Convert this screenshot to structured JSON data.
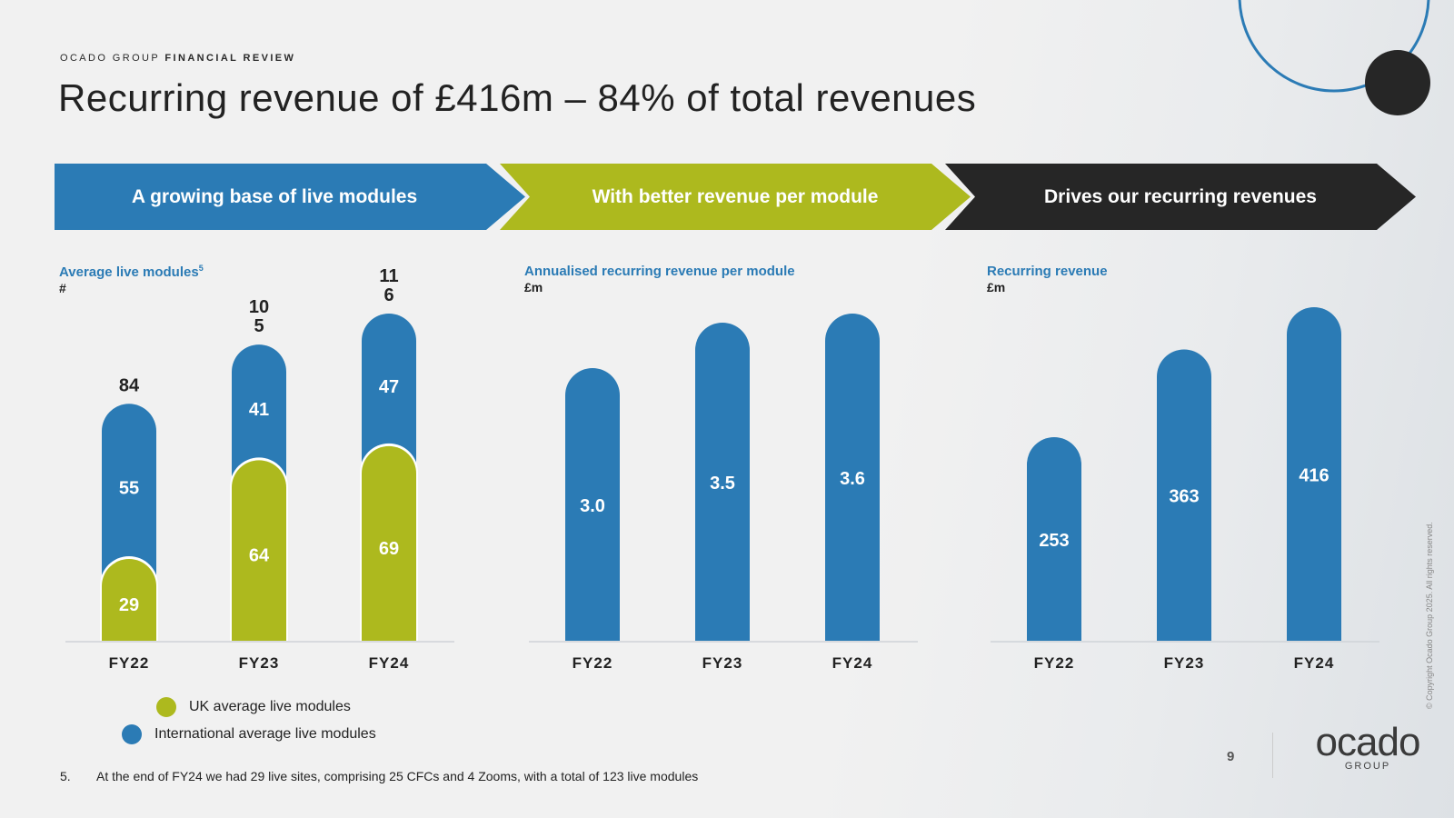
{
  "header": {
    "kicker_light": "OCADO GROUP",
    "kicker_bold": "FINANCIAL REVIEW",
    "title": "Recurring revenue of £416m – 84% of total revenues"
  },
  "chevrons": [
    {
      "label": "A growing base of live modules",
      "color": "#2b7bb5"
    },
    {
      "label": "With better revenue per module",
      "color": "#adb91e"
    },
    {
      "label": "Drives our recurring revenues",
      "color": "#262626"
    }
  ],
  "chart_data": [
    {
      "type": "bar",
      "stacked": true,
      "title": "Average live modules",
      "title_sup": "5",
      "unit": "#",
      "categories": [
        "FY22",
        "FY23",
        "FY24"
      ],
      "series": [
        {
          "name": "UK average live modules",
          "values": [
            29,
            64,
            69
          ],
          "color": "#adb91e"
        },
        {
          "name": "International average live modules",
          "values": [
            55,
            41,
            47
          ],
          "color": "#2b7bb5"
        }
      ],
      "totals": [
        "84",
        "10\n5",
        "11\n6"
      ],
      "ylim": [
        0,
        116
      ]
    },
    {
      "type": "bar",
      "title": "Annualised recurring revenue per module",
      "unit": "£m",
      "categories": [
        "FY22",
        "FY23",
        "FY24"
      ],
      "values": [
        3.0,
        3.5,
        3.6
      ],
      "value_labels": [
        "3.0",
        "3.5",
        "3.6"
      ],
      "color": "#2b7bb5",
      "ylim": [
        0,
        3.6
      ]
    },
    {
      "type": "bar",
      "title": "Recurring revenue",
      "unit": "£m",
      "categories": [
        "FY22",
        "FY23",
        "FY24"
      ],
      "values": [
        253,
        363,
        416
      ],
      "value_labels": [
        "253",
        "363",
        "416"
      ],
      "color": "#2b7bb5",
      "ylim": [
        0,
        416
      ]
    }
  ],
  "legend": {
    "uk_label": "UK average live modules",
    "uk_color": "#adb91e",
    "intl_label": "International average live modules",
    "intl_color": "#2b7bb5"
  },
  "footnote": {
    "number": "5.",
    "text": "At the end of FY24 we had 29 live sites, comprising 25 CFCs and 4 Zooms, with a total of 123 live modules"
  },
  "footer": {
    "page_number": "9",
    "logo_word": "ocado",
    "logo_sub": "GROUP",
    "copyright": "© Copyright Ocado Group 2025. All rights reserved."
  }
}
